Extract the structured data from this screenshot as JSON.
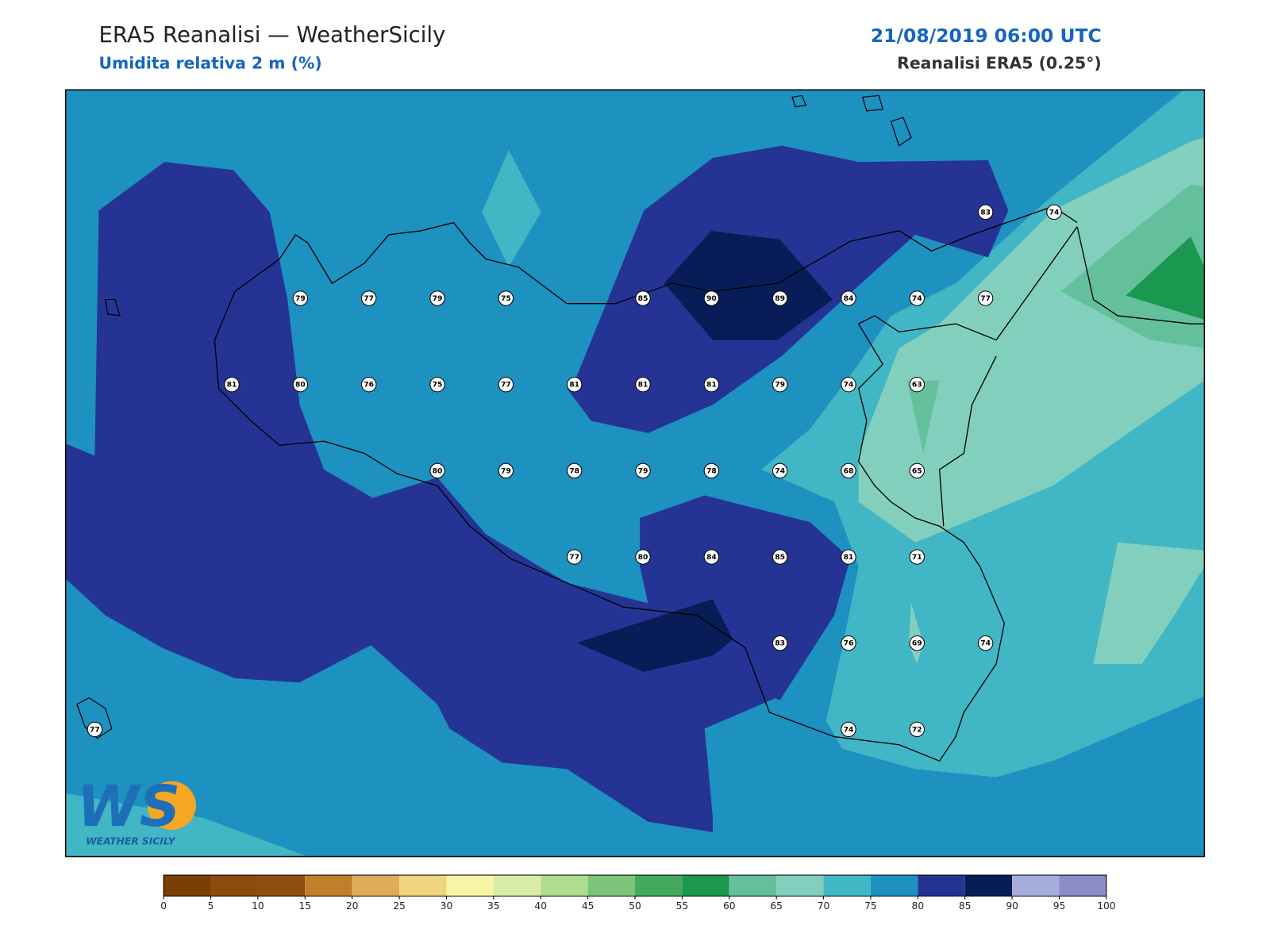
{
  "header": {
    "title": "ERA5 Reanalisi — WeatherSicily",
    "subtitle": "Umidita relativa 2 m (%)",
    "datetime": "21/08/2019 06:00 UTC",
    "source": "Reanalisi ERA5 (0.25°)"
  },
  "grid": {
    "rows": [
      [
        null,
        null,
        null,
        null,
        null,
        null,
        null,
        null,
        null,
        null,
        null,
        null,
        null,
        83,
        74
      ],
      [
        null,
        null,
        null,
        79,
        77,
        79,
        75,
        null,
        85,
        90,
        89,
        84,
        74,
        77,
        null
      ],
      [
        null,
        null,
        81,
        80,
        76,
        75,
        77,
        81,
        81,
        81,
        79,
        74,
        63,
        null,
        null
      ],
      [
        null,
        null,
        null,
        null,
        null,
        80,
        79,
        78,
        79,
        78,
        74,
        68,
        65,
        null,
        null
      ],
      [
        null,
        null,
        null,
        null,
        null,
        null,
        null,
        77,
        80,
        84,
        85,
        81,
        71,
        null,
        null
      ],
      [
        null,
        null,
        null,
        null,
        null,
        null,
        null,
        null,
        null,
        null,
        83,
        76,
        69,
        74,
        null
      ],
      [
        77,
        null,
        null,
        null,
        null,
        null,
        null,
        null,
        null,
        null,
        null,
        74,
        72,
        null,
        null
      ]
    ]
  },
  "colorbar": {
    "bounds": [
      0,
      5,
      10,
      15,
      20,
      25,
      30,
      35,
      40,
      45,
      50,
      55,
      60,
      65,
      70,
      75,
      80,
      85,
      90,
      95,
      100
    ],
    "colors": [
      "#7b3f06",
      "#8c4a0c",
      "#8f4d10",
      "#c07f2b",
      "#dfad5a",
      "#f0d57c",
      "#f6f5a6",
      "#d9eda6",
      "#aedd8f",
      "#7bc47a",
      "#44a95e",
      "#1b9850",
      "#64c09c",
      "#83cfbd",
      "#41b6c4",
      "#1d91c0",
      "#253494",
      "#081d58",
      "#a6acdc",
      "#8c8cc8"
    ]
  },
  "logo": {
    "initials": "WS",
    "name": "WEATHER SICILY"
  }
}
